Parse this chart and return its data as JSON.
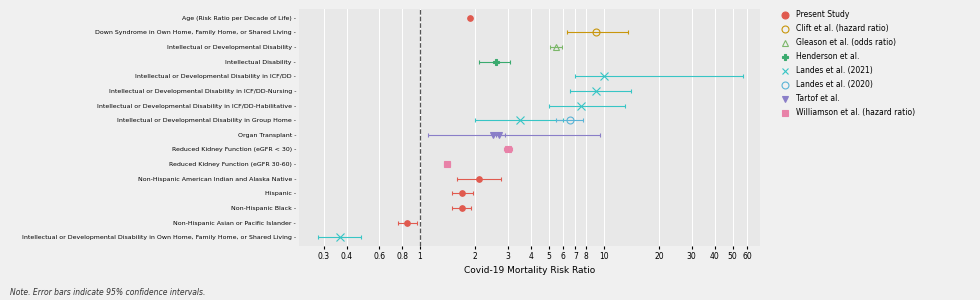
{
  "categories": [
    "Age (Risk Ratio per Decade of Life)",
    "Down Syndrome in Own Home, Family Home, or Shared Living",
    "Intellectual or Developmental Disability",
    "Intellectual Disability",
    "Intellectual or Developmental Disability in ICF/DD",
    "Intellectual or Developmental Disability in ICF/DD-Nursing",
    "Intellectual or Developmental Disability in ICF/DD-Habilitative",
    "Intellectual or Developmental Disability in Group Home",
    "Organ Transplant",
    "Reduced Kidney Function (eGFR < 30)",
    "Reduced Kidney Function (eGFR 30-60)",
    "Non-Hispanic American Indian and Alaska Native",
    "Hispanic",
    "Non-Hispanic Black",
    "Non-Hispanic Asian or Pacific Islander",
    "Intellectual or Developmental Disability in Own Home, Family Home, or Shared Living"
  ],
  "points": [
    {
      "row": 0,
      "value": 1.87,
      "lo": 1.87,
      "hi": 1.87,
      "study": "Present Study",
      "marker": "o",
      "color": "#e05a4f",
      "ms": 4,
      "open": false
    },
    {
      "row": 1,
      "value": 9.0,
      "lo": 6.3,
      "hi": 13.5,
      "study": "Clift et al. (hazard ratio)",
      "marker": "o",
      "color": "#c8960c",
      "ms": 5,
      "open": true
    },
    {
      "row": 2,
      "value": 5.5,
      "lo": 5.1,
      "hi": 5.9,
      "study": "Gleason et al. (odds ratio)",
      "marker": "^",
      "color": "#7cb76a",
      "ms": 5,
      "open": true
    },
    {
      "row": 3,
      "value": 2.6,
      "lo": 2.1,
      "hi": 3.1,
      "study": "Henderson et al.",
      "marker": "P",
      "color": "#3aaa6e",
      "ms": 5,
      "open": false
    },
    {
      "row": 4,
      "value": 10.0,
      "lo": 7.0,
      "hi": 57.0,
      "study": "Landes et al. (2021)",
      "marker": "x",
      "color": "#38c5c5",
      "ms": 6,
      "open": false
    },
    {
      "row": 5,
      "value": 9.0,
      "lo": 6.5,
      "hi": 14.0,
      "study": "Landes et al. (2021)",
      "marker": "x",
      "color": "#38c5c5",
      "ms": 6,
      "open": false
    },
    {
      "row": 6,
      "value": 7.5,
      "lo": 5.0,
      "hi": 13.0,
      "study": "Landes et al. (2021)",
      "marker": "x",
      "color": "#38c5c5",
      "ms": 6,
      "open": false
    },
    {
      "row": 7,
      "value": 3.5,
      "lo": 2.0,
      "hi": 6.0,
      "study": "Landes et al. (2021)",
      "marker": "x",
      "color": "#38c5c5",
      "ms": 6,
      "open": false
    },
    {
      "row": 7,
      "value": 6.5,
      "lo": 5.5,
      "hi": 7.7,
      "study": "Landes et al. (2020)",
      "marker": "o",
      "color": "#5ab4d6",
      "ms": 5,
      "open": true
    },
    {
      "row": 8,
      "value": 2.7,
      "lo": 2.6,
      "hi": 2.9,
      "study": "Tartof et al.",
      "marker": "v",
      "color": "#8a7ec8",
      "ms": 5,
      "open": false
    },
    {
      "row": 8,
      "value": 2.5,
      "lo": 1.1,
      "hi": 9.5,
      "study": "Tartof et al.",
      "marker": "v",
      "color": "#8a7ec8",
      "ms": 5,
      "open": false
    },
    {
      "row": 9,
      "value": 3.0,
      "lo": 2.85,
      "hi": 3.15,
      "study": "Williamson et al. (hazard ratio)",
      "marker": "s",
      "color": "#e882a8",
      "ms": 4,
      "open": false
    },
    {
      "row": 10,
      "value": 1.4,
      "lo": 1.35,
      "hi": 1.45,
      "study": "Williamson et al. (hazard ratio)",
      "marker": "s",
      "color": "#e882a8",
      "ms": 4,
      "open": false
    },
    {
      "row": 11,
      "value": 2.1,
      "lo": 1.6,
      "hi": 2.75,
      "study": "Present Study",
      "marker": "o",
      "color": "#e05a4f",
      "ms": 4,
      "open": false
    },
    {
      "row": 12,
      "value": 1.7,
      "lo": 1.5,
      "hi": 1.95,
      "study": "Present Study",
      "marker": "o",
      "color": "#e05a4f",
      "ms": 4,
      "open": false
    },
    {
      "row": 13,
      "value": 1.7,
      "lo": 1.5,
      "hi": 1.9,
      "study": "Present Study",
      "marker": "o",
      "color": "#e05a4f",
      "ms": 4,
      "open": false
    },
    {
      "row": 14,
      "value": 0.85,
      "lo": 0.76,
      "hi": 0.97,
      "study": "Present Study",
      "marker": "o",
      "color": "#e05a4f",
      "ms": 4,
      "open": false
    },
    {
      "row": 15,
      "value": 0.37,
      "lo": 0.28,
      "hi": 0.48,
      "study": "Landes et al. (2021)",
      "marker": "x",
      "color": "#38c5c5",
      "ms": 6,
      "open": false
    }
  ],
  "legend_entries": [
    {
      "label": "Present Study",
      "marker": "o",
      "color": "#e05a4f",
      "facecolor": "#e05a4f"
    },
    {
      "label": "Clift et al. (hazard ratio)",
      "marker": "o",
      "color": "#c8960c",
      "facecolor": "none"
    },
    {
      "label": "Gleason et al. (odds ratio)",
      "marker": "^",
      "color": "#7cb76a",
      "facecolor": "none"
    },
    {
      "label": "Henderson et al.",
      "marker": "P",
      "color": "#3aaa6e",
      "facecolor": "#3aaa6e"
    },
    {
      "label": "Landes et al. (2021)",
      "marker": "x",
      "color": "#38c5c5",
      "facecolor": "#38c5c5"
    },
    {
      "label": "Landes et al. (2020)",
      "marker": "o",
      "color": "#5ab4d6",
      "facecolor": "none"
    },
    {
      "label": "Tartof et al.",
      "marker": "v",
      "color": "#8a7ec8",
      "facecolor": "#8a7ec8"
    },
    {
      "label": "Williamson et al. (hazard ratio)",
      "marker": "s",
      "color": "#e882a8",
      "facecolor": "#e882a8"
    }
  ],
  "xlabel": "Covid-19 Mortality Risk Ratio",
  "note": "Note. Error bars indicate 95% confidence intervals.",
  "ref_line": 1.0,
  "xticks": [
    0.3,
    0.4,
    0.6,
    0.8,
    1,
    2,
    3,
    4,
    5,
    6,
    7,
    8,
    10,
    20,
    30,
    40,
    50,
    60
  ],
  "xlim_lo": 0.22,
  "xlim_hi": 70,
  "bg_color": "#f0f0f0",
  "plot_bg": "#e8e8e8"
}
